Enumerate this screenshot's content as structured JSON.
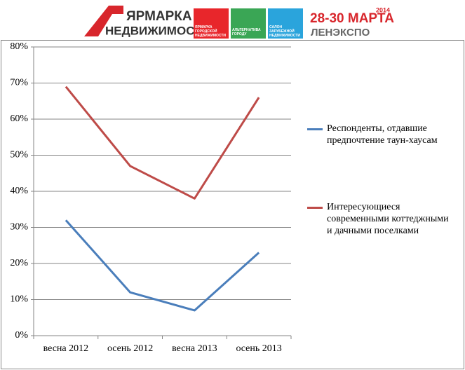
{
  "header": {
    "logo_line1": "ЯРМАРКА",
    "logo_line2": "НЕДВИЖИМОСТИ",
    "box1": "ЯРМАРКА ГОРОДСКОЙ НЕДВИЖИМОСТИ",
    "box2": "АЛЬТЕРНАТИВА ГОРОДУ",
    "box3": "САЛОН ЗАРУБЕЖНОЙ НЕДВИЖИМОСТИ",
    "dates": "28-30 МАРТА",
    "year": "2014",
    "venue": "ЛЕНЭКСПО"
  },
  "chart_data": {
    "type": "line",
    "categories": [
      "весна 2012",
      "осень 2012",
      "весна 2013",
      "осень 2013"
    ],
    "series": [
      {
        "name": "Респонденты, отдавшие предпочтение таун-хаусам",
        "color": "#4a7ebb",
        "values": [
          32,
          12,
          7,
          23
        ]
      },
      {
        "name": "Интересующиеся современными коттеджными и дачными поселками",
        "color": "#be4b48",
        "values": [
          69,
          47,
          38,
          66
        ]
      }
    ],
    "ylim": [
      0,
      80
    ],
    "yticks": [
      {
        "value": 0,
        "label": "0%"
      },
      {
        "value": 10,
        "label": "10%"
      },
      {
        "value": 20,
        "label": "20%"
      },
      {
        "value": 30,
        "label": "30%"
      },
      {
        "value": 40,
        "label": "40%"
      },
      {
        "value": 50,
        "label": "50%"
      },
      {
        "value": 60,
        "label": "60%"
      },
      {
        "value": 70,
        "label": "70%"
      },
      {
        "value": 80,
        "label": "80%"
      }
    ],
    "grid": true,
    "legend": "right"
  }
}
